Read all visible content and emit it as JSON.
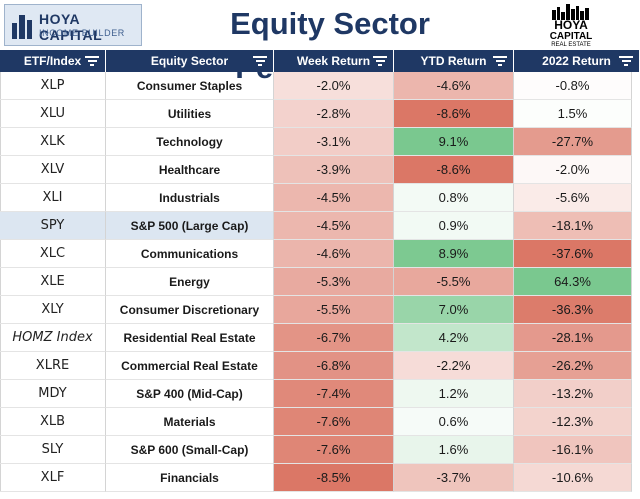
{
  "header": {
    "logo_left_line1": "HOYA CAPITAL",
    "logo_left_line2": "INCOME BUILDER",
    "title": "Equity Sector Performance",
    "logo_right_line1": "HOYA",
    "logo_right_line2": "CAPITAL",
    "logo_right_line3": "REAL ESTATE"
  },
  "colors": {
    "header_bg": "#1f3864",
    "title": "#1f3864",
    "negative_max": "#d9705e",
    "positive_max": "#63be7b",
    "neutral": "#ffffff",
    "highlight_row": "#dce6f1"
  },
  "chart_data": {
    "type": "table",
    "title": "Equity Sector Performance",
    "columns": [
      "ETF/Index",
      "Equity Sector",
      "Week Return",
      "YTD Return",
      "2022 Return"
    ],
    "rows": [
      {
        "etf": "XLP",
        "sector": "Consumer Staples",
        "week": "-2.0%",
        "ytd": "-4.6%",
        "y2022": "-0.8%",
        "week_v": -2.0,
        "ytd_v": -4.6,
        "y2022_v": -0.8
      },
      {
        "etf": "XLU",
        "sector": "Utilities",
        "week": "-2.8%",
        "ytd": "-8.6%",
        "y2022": "1.5%",
        "week_v": -2.8,
        "ytd_v": -8.6,
        "y2022_v": 1.5
      },
      {
        "etf": "XLK",
        "sector": "Technology",
        "week": "-3.1%",
        "ytd": "9.1%",
        "y2022": "-27.7%",
        "week_v": -3.1,
        "ytd_v": 9.1,
        "y2022_v": -27.7
      },
      {
        "etf": "XLV",
        "sector": "Healthcare",
        "week": "-3.9%",
        "ytd": "-8.6%",
        "y2022": "-2.0%",
        "week_v": -3.9,
        "ytd_v": -8.6,
        "y2022_v": -2.0
      },
      {
        "etf": "XLI",
        "sector": "Industrials",
        "week": "-4.5%",
        "ytd": "0.8%",
        "y2022": "-5.6%",
        "week_v": -4.5,
        "ytd_v": 0.8,
        "y2022_v": -5.6
      },
      {
        "etf": "SPY",
        "sector": "S&P 500 (Large Cap)",
        "week": "-4.5%",
        "ytd": "0.9%",
        "y2022": "-18.1%",
        "week_v": -4.5,
        "ytd_v": 0.9,
        "y2022_v": -18.1,
        "highlight": true
      },
      {
        "etf": "XLC",
        "sector": "Communications",
        "week": "-4.6%",
        "ytd": "8.9%",
        "y2022": "-37.6%",
        "week_v": -4.6,
        "ytd_v": 8.9,
        "y2022_v": -37.6
      },
      {
        "etf": "XLE",
        "sector": "Energy",
        "week": "-5.3%",
        "ytd": "-5.5%",
        "y2022": "64.3%",
        "week_v": -5.3,
        "ytd_v": -5.5,
        "y2022_v": 64.3
      },
      {
        "etf": "XLY",
        "sector": "Consumer Discretionary",
        "week": "-5.5%",
        "ytd": "7.0%",
        "y2022": "-36.3%",
        "week_v": -5.5,
        "ytd_v": 7.0,
        "y2022_v": -36.3
      },
      {
        "etf": "HOMZ Index",
        "sector": "Residential Real Estate",
        "week": "-6.7%",
        "ytd": "4.2%",
        "y2022": "-28.1%",
        "week_v": -6.7,
        "ytd_v": 4.2,
        "y2022_v": -28.1,
        "italic": true
      },
      {
        "etf": "XLRE",
        "sector": "Commercial Real Estate",
        "week": "-6.8%",
        "ytd": "-2.2%",
        "y2022": "-26.2%",
        "week_v": -6.8,
        "ytd_v": -2.2,
        "y2022_v": -26.2
      },
      {
        "etf": "MDY",
        "sector": "S&P 400 (Mid-Cap)",
        "week": "-7.4%",
        "ytd": "1.2%",
        "y2022": "-13.2%",
        "week_v": -7.4,
        "ytd_v": 1.2,
        "y2022_v": -13.2
      },
      {
        "etf": "XLB",
        "sector": "Materials",
        "week": "-7.6%",
        "ytd": "0.6%",
        "y2022": "-12.3%",
        "week_v": -7.6,
        "ytd_v": 0.6,
        "y2022_v": -12.3
      },
      {
        "etf": "SLY",
        "sector": "S&P 600 (Small-Cap)",
        "week": "-7.6%",
        "ytd": "1.6%",
        "y2022": "-16.1%",
        "week_v": -7.6,
        "ytd_v": 1.6,
        "y2022_v": -16.1
      },
      {
        "etf": "XLF",
        "sector": "Financials",
        "week": "-8.5%",
        "ytd": "-3.7%",
        "y2022": "-10.6%",
        "week_v": -8.5,
        "ytd_v": -3.7,
        "y2022_v": -10.6
      }
    ]
  }
}
